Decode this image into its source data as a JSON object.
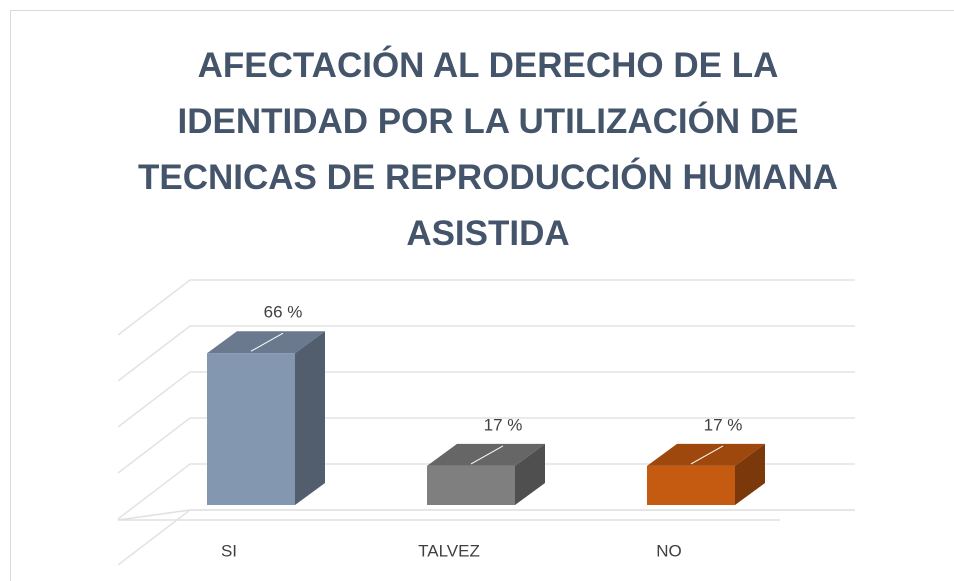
{
  "chart_data": {
    "type": "bar3d",
    "title": "AFECTACIÓN AL DERECHO DE LA IDENTIDAD POR LA UTILIZACIÓN DE TECNICAS DE REPRODUCCIÓN HUMANA ASISTIDA",
    "categories": [
      "SI",
      "TALVEZ",
      "NO"
    ],
    "values": [
      66,
      17,
      17
    ],
    "value_labels": [
      "66 %",
      "17 %",
      "17 %"
    ],
    "colors": [
      "#8497b0",
      "#7f7f7f",
      "#c55a11"
    ],
    "ylim": [
      0,
      100
    ],
    "yticks": [
      0,
      20,
      40,
      60,
      80,
      100
    ],
    "grid": true
  }
}
